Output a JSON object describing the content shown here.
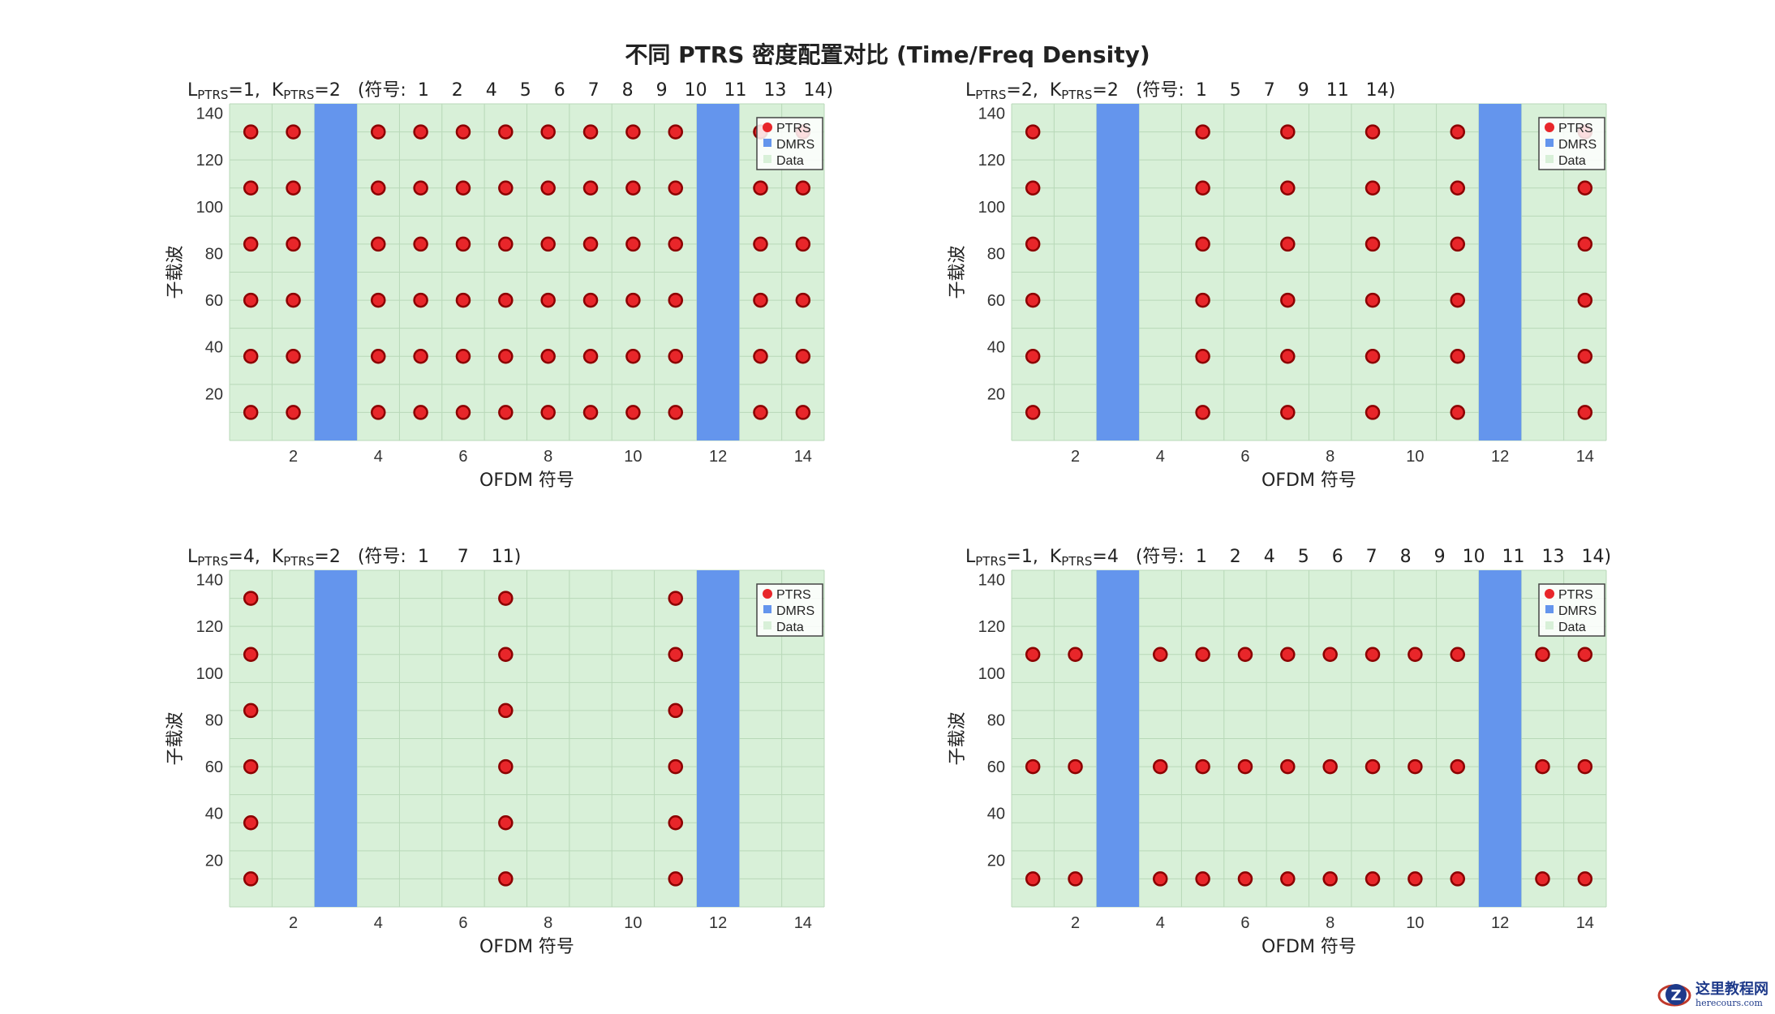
{
  "title": "不同 PTRS 密度配置对比 (Time/Freq Density)",
  "colors": {
    "ptrs": "#e8262a",
    "ptrs_edge": "#8b0000",
    "dmrs": "#6495ed",
    "data": "#d8f0d8",
    "grid": "#b8d8b8"
  },
  "watermark": {
    "cn": "这里教程网",
    "en": "herecours.com"
  },
  "chart_data": [
    {
      "type": "scatter",
      "title_l": "1",
      "title_k": "2",
      "title_symbols": "(符号:  1    2    4    5    6    7    8    9   10   11   13   14)",
      "xlabel": "OFDM 符号",
      "ylabel": "子载波",
      "xlim": [
        0.5,
        14.5
      ],
      "ylim": [
        0,
        144
      ],
      "xticks": [
        2,
        4,
        6,
        8,
        10,
        12,
        14
      ],
      "yticks": [
        20,
        40,
        60,
        80,
        100,
        120,
        140
      ],
      "dmrs_symbols": [
        3,
        12
      ],
      "ptrs_symbols": [
        1,
        2,
        4,
        5,
        6,
        7,
        8,
        9,
        10,
        11,
        13,
        14
      ],
      "ptrs_subcarriers": [
        12,
        36,
        60,
        84,
        108,
        132
      ],
      "legend": [
        "PTRS",
        "DMRS",
        "Data"
      ],
      "legend_position": "upper-right",
      "grid": true
    },
    {
      "type": "scatter",
      "title_l": "2",
      "title_k": "2",
      "title_symbols": "(符号:  1    5    7    9   11   14)",
      "xlabel": "OFDM 符号",
      "ylabel": "子载波",
      "xlim": [
        0.5,
        14.5
      ],
      "ylim": [
        0,
        144
      ],
      "xticks": [
        2,
        4,
        6,
        8,
        10,
        12,
        14
      ],
      "yticks": [
        20,
        40,
        60,
        80,
        100,
        120,
        140
      ],
      "dmrs_symbols": [
        3,
        12
      ],
      "ptrs_symbols": [
        1,
        5,
        7,
        9,
        11,
        14
      ],
      "ptrs_subcarriers": [
        12,
        36,
        60,
        84,
        108,
        132
      ],
      "legend": [
        "PTRS",
        "DMRS",
        "Data"
      ],
      "legend_position": "upper-right",
      "grid": true
    },
    {
      "type": "scatter",
      "title_l": "4",
      "title_k": "2",
      "title_symbols": "(符号:  1     7    11)",
      "xlabel": "OFDM 符号",
      "ylabel": "子载波",
      "xlim": [
        0.5,
        14.5
      ],
      "ylim": [
        0,
        144
      ],
      "xticks": [
        2,
        4,
        6,
        8,
        10,
        12,
        14
      ],
      "yticks": [
        20,
        40,
        60,
        80,
        100,
        120,
        140
      ],
      "dmrs_symbols": [
        3,
        12
      ],
      "ptrs_symbols": [
        1,
        7,
        11
      ],
      "ptrs_subcarriers": [
        12,
        36,
        60,
        84,
        108,
        132
      ],
      "legend": [
        "PTRS",
        "DMRS",
        "Data"
      ],
      "legend_position": "upper-right",
      "grid": true
    },
    {
      "type": "scatter",
      "title_l": "1",
      "title_k": "4",
      "title_symbols": "(符号:  1    2    4    5    6    7    8    9   10   11   13   14)",
      "xlabel": "OFDM 符号",
      "ylabel": "子载波",
      "xlim": [
        0.5,
        14.5
      ],
      "ylim": [
        0,
        144
      ],
      "xticks": [
        2,
        4,
        6,
        8,
        10,
        12,
        14
      ],
      "yticks": [
        20,
        40,
        60,
        80,
        100,
        120,
        140
      ],
      "dmrs_symbols": [
        3,
        12
      ],
      "ptrs_symbols": [
        1,
        2,
        4,
        5,
        6,
        7,
        8,
        9,
        10,
        11,
        13,
        14
      ],
      "ptrs_subcarriers": [
        12,
        60,
        108
      ],
      "legend": [
        "PTRS",
        "DMRS",
        "Data"
      ],
      "legend_position": "upper-right",
      "grid": true
    }
  ]
}
